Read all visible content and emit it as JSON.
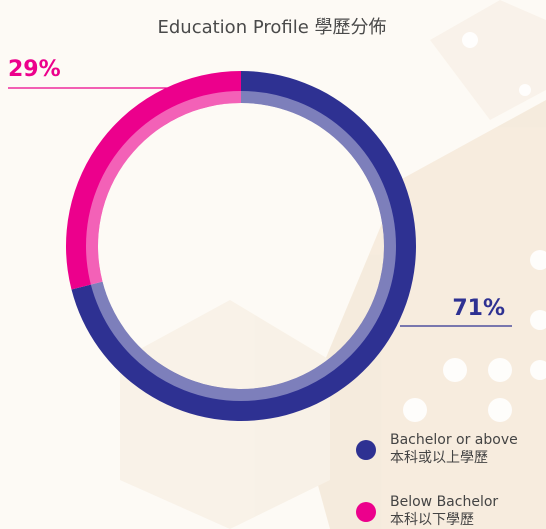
{
  "chart_data": {
    "type": "donut",
    "title": "Education Profile 學歷分佈",
    "categories": [
      "Bachelor or above",
      "Below Bachelor"
    ],
    "categories_zh": [
      "本科或以上學歷",
      "本科以下學歷"
    ],
    "values": [
      71,
      29
    ],
    "value_labels": [
      "71%",
      "29%"
    ],
    "colors": [
      "#2e3192",
      "#ec008c"
    ]
  }
}
